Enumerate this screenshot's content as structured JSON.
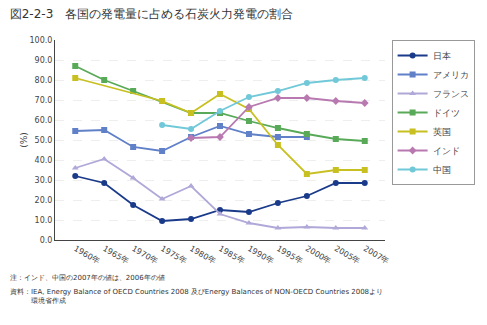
{
  "chart_data": {
    "type": "line",
    "title": "図2-2-3　各国の発電量に占める石炭火力発電の割合",
    "ylabel": "(%)",
    "annotations": [
      "注：インド、中国の2007年の値は、2006年の値",
      "資料：IEA, Energy Balance of OECD Countries 2008 及びEnergy Balances of NON-OECD Countries 2008より\n　　　環境省作成"
    ],
    "categories": [
      "1960年",
      "1965年",
      "1970年",
      "1975年",
      "1980年",
      "1985年",
      "1990年",
      "1995年",
      "2000年",
      "2005年",
      "2007年"
    ],
    "series": [
      {
        "name": "日本",
        "color": "#1a3a8a",
        "marker": "circle",
        "values": [
          32.0,
          28.5,
          17.5,
          9.5,
          10.5,
          15.0,
          14.0,
          18.5,
          22.0,
          28.5,
          28.5
        ]
      },
      {
        "name": "アメリカ",
        "color": "#6080c8",
        "marker": "square",
        "values": [
          54.5,
          55.0,
          46.5,
          44.5,
          51.5,
          57.0,
          53.0,
          51.5,
          51.5,
          null,
          null
        ]
      },
      {
        "name": "フランス",
        "color": "#b0a8d8",
        "marker": "triangle",
        "values": [
          36.0,
          40.5,
          31.0,
          20.5,
          27.0,
          13.0,
          8.5,
          6.0,
          6.5,
          6.0,
          6.0
        ]
      },
      {
        "name": "ドイツ",
        "color": "#58aa58",
        "marker": "square",
        "values": [
          87.0,
          80.0,
          74.5,
          null,
          63.5,
          63.5,
          59.5,
          56.0,
          53.0,
          50.5,
          49.5
        ]
      },
      {
        "name": "英国",
        "color": "#c8c020",
        "marker": "square",
        "values": [
          81.0,
          null,
          null,
          69.5,
          63.5,
          73.0,
          65.5,
          47.5,
          33.0,
          35.0,
          35.0
        ]
      },
      {
        "name": "インド",
        "color": "#b878b0",
        "marker": "diamond",
        "values": [
          null,
          null,
          null,
          null,
          51.0,
          51.5,
          66.5,
          71.0,
          71.0,
          69.5,
          68.5
        ]
      },
      {
        "name": "中国",
        "color": "#70c8d8",
        "marker": "circle",
        "values": [
          null,
          null,
          null,
          57.5,
          55.5,
          64.5,
          71.5,
          74.5,
          78.5,
          80.0,
          81.0
        ]
      }
    ],
    "ylim": [
      0,
      100
    ],
    "yticks": [
      {
        "value": 0,
        "label": "0.0"
      },
      {
        "value": 10,
        "label": "10.0"
      },
      {
        "value": 20,
        "label": "20.0"
      },
      {
        "value": 30,
        "label": "30.0"
      },
      {
        "value": 40,
        "label": "40.0"
      },
      {
        "value": 50,
        "label": "50.0"
      },
      {
        "value": 60,
        "label": "60.0"
      },
      {
        "value": 70,
        "label": "70.0"
      },
      {
        "value": 80,
        "label": "80.0"
      },
      {
        "value": 90,
        "label": "90.0"
      },
      {
        "value": 100,
        "label": "100.0"
      }
    ],
    "grid": true,
    "legend": "right"
  }
}
